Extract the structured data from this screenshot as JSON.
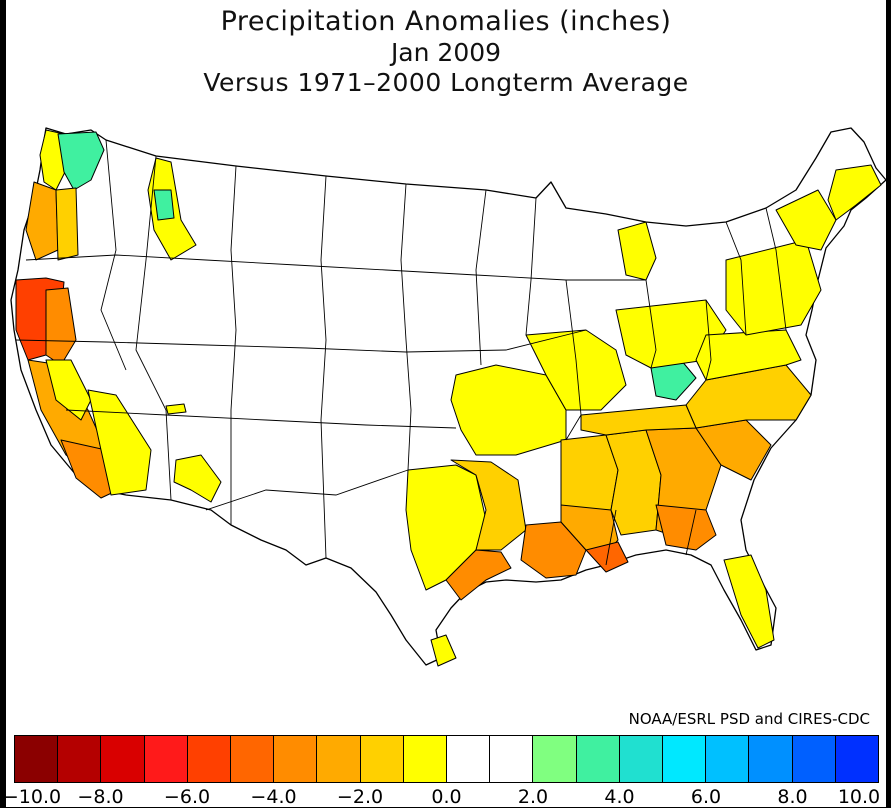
{
  "title": {
    "line1": "Precipitation Anomalies (inches)",
    "line2": "Jan 2009",
    "line3": "Versus 1971–2000 Longterm Average"
  },
  "credit": "NOAA/ESRL PSD and CIRES-CDC",
  "legend": {
    "colors": [
      "#8b0000",
      "#b40000",
      "#d90000",
      "#ff1a1a",
      "#ff4000",
      "#ff6600",
      "#ff8c00",
      "#ffaa00",
      "#ffd000",
      "#ffff00",
      "#ffffff",
      "#ffffff",
      "#80ff80",
      "#40f0a0",
      "#20e0d0",
      "#00e8ff",
      "#00c0ff",
      "#0090ff",
      "#0060ff",
      "#0030ff"
    ],
    "tick_labels": [
      "−10.0",
      "−8.0",
      "−6.0",
      "−4.0",
      "−2.0",
      "0.0",
      "2.0",
      "4.0",
      "6.0",
      "8.0",
      "10.0"
    ],
    "range": [
      -10,
      10
    ]
  },
  "map": {
    "colors": {
      "land": "#ffffff",
      "dry1": "#ffff00",
      "dry2": "#ffd000",
      "dry3": "#ffaa00",
      "dry4": "#ff8c00",
      "dry5": "#ff6600",
      "dry6": "#ff4000",
      "wet1": "#80ff80",
      "wet2": "#40f0a0"
    }
  }
}
